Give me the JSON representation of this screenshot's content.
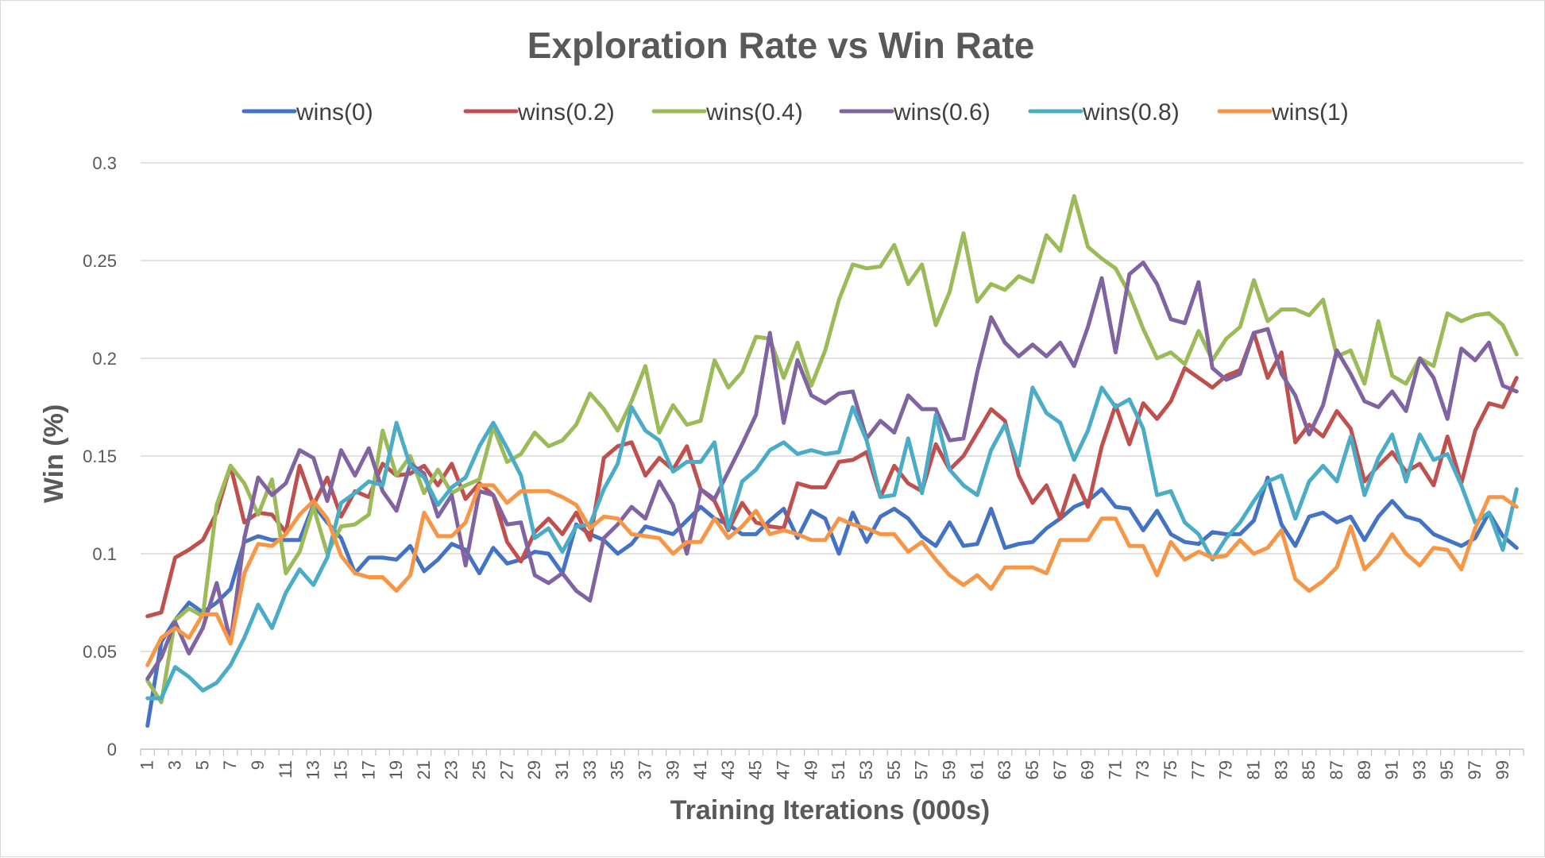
{
  "chart_data": {
    "type": "line",
    "title": "Exploration Rate vs Win Rate",
    "xlabel": "Training Iterations (000s)",
    "ylabel": "Win (%)",
    "ylim": [
      0,
      0.3
    ],
    "yticks": [
      "0",
      "0.05",
      "0.1",
      "0.15",
      "0.2",
      "0.25",
      "0.3"
    ],
    "xlim": [
      1,
      100
    ],
    "grid": "horizontal",
    "legend_position": "top",
    "series": [
      {
        "name": "wins(0)",
        "color": "#4472C4",
        "values": [
          0.012,
          0.055,
          0.066,
          0.075,
          0.07,
          0.075,
          0.082,
          0.106,
          0.109,
          0.107,
          0.107,
          0.107,
          0.125,
          0.116,
          0.108,
          0.09,
          0.098,
          0.098,
          0.097,
          0.104,
          0.091,
          0.097,
          0.105,
          0.102,
          0.09,
          0.103,
          0.095,
          0.097,
          0.101,
          0.1,
          0.09,
          0.115,
          0.11,
          0.107,
          0.1,
          0.105,
          0.114,
          0.112,
          0.11,
          0.117,
          0.124,
          0.118,
          0.115,
          0.11,
          0.11,
          0.117,
          0.123,
          0.108,
          0.122,
          0.118,
          0.1,
          0.121,
          0.106,
          0.119,
          0.123,
          0.118,
          0.109,
          0.104,
          0.116,
          0.104,
          0.105,
          0.123,
          0.103,
          0.105,
          0.106,
          0.113,
          0.118,
          0.124,
          0.127,
          0.133,
          0.124,
          0.123,
          0.112,
          0.122,
          0.11,
          0.106,
          0.105,
          0.111,
          0.11,
          0.11,
          0.117,
          0.139,
          0.115,
          0.104,
          0.119,
          0.121,
          0.116,
          0.119,
          0.107,
          0.119,
          0.127,
          0.119,
          0.117,
          0.11,
          0.107,
          0.104,
          0.108,
          0.121,
          0.109,
          0.103
        ]
      },
      {
        "name": "wins(0.2)",
        "color": "#C0504D",
        "values": [
          0.068,
          0.07,
          0.098,
          0.102,
          0.107,
          0.121,
          0.145,
          0.116,
          0.121,
          0.12,
          0.111,
          0.145,
          0.125,
          0.139,
          0.119,
          0.132,
          0.129,
          0.146,
          0.14,
          0.141,
          0.145,
          0.135,
          0.146,
          0.128,
          0.136,
          0.13,
          0.106,
          0.096,
          0.111,
          0.118,
          0.11,
          0.121,
          0.107,
          0.149,
          0.155,
          0.157,
          0.14,
          0.149,
          0.143,
          0.155,
          0.133,
          0.127,
          0.112,
          0.126,
          0.116,
          0.114,
          0.113,
          0.136,
          0.134,
          0.134,
          0.147,
          0.148,
          0.152,
          0.129,
          0.145,
          0.136,
          0.132,
          0.156,
          0.143,
          0.15,
          0.162,
          0.174,
          0.168,
          0.14,
          0.126,
          0.135,
          0.118,
          0.14,
          0.124,
          0.155,
          0.176,
          0.156,
          0.177,
          0.169,
          0.178,
          0.195,
          0.19,
          0.185,
          0.191,
          0.194,
          0.213,
          0.19,
          0.203,
          0.157,
          0.166,
          0.16,
          0.173,
          0.164,
          0.137,
          0.145,
          0.152,
          0.142,
          0.146,
          0.135,
          0.16,
          0.136,
          0.163,
          0.177,
          0.175,
          0.19
        ]
      },
      {
        "name": "wins(0.4)",
        "color": "#9BBB59",
        "values": [
          0.035,
          0.024,
          0.066,
          0.072,
          0.068,
          0.125,
          0.145,
          0.136,
          0.12,
          0.138,
          0.09,
          0.101,
          0.124,
          0.1,
          0.114,
          0.115,
          0.12,
          0.163,
          0.14,
          0.15,
          0.131,
          0.143,
          0.131,
          0.135,
          0.138,
          0.165,
          0.147,
          0.151,
          0.162,
          0.155,
          0.158,
          0.166,
          0.182,
          0.174,
          0.163,
          0.178,
          0.196,
          0.162,
          0.176,
          0.166,
          0.168,
          0.199,
          0.185,
          0.193,
          0.211,
          0.21,
          0.19,
          0.208,
          0.186,
          0.204,
          0.23,
          0.248,
          0.246,
          0.247,
          0.258,
          0.238,
          0.248,
          0.217,
          0.234,
          0.264,
          0.229,
          0.238,
          0.235,
          0.242,
          0.239,
          0.263,
          0.255,
          0.283,
          0.257,
          0.251,
          0.246,
          0.233,
          0.215,
          0.2,
          0.203,
          0.197,
          0.214,
          0.199,
          0.21,
          0.216,
          0.24,
          0.219,
          0.225,
          0.225,
          0.222,
          0.23,
          0.201,
          0.204,
          0.187,
          0.219,
          0.191,
          0.187,
          0.2,
          0.196,
          0.223,
          0.219,
          0.222,
          0.223,
          0.217,
          0.202
        ]
      },
      {
        "name": "wins(0.6)",
        "color": "#8064A2",
        "values": [
          0.036,
          0.047,
          0.065,
          0.049,
          0.062,
          0.085,
          0.055,
          0.108,
          0.139,
          0.13,
          0.136,
          0.153,
          0.149,
          0.127,
          0.153,
          0.14,
          0.154,
          0.132,
          0.122,
          0.146,
          0.141,
          0.119,
          0.13,
          0.094,
          0.132,
          0.13,
          0.115,
          0.116,
          0.089,
          0.085,
          0.09,
          0.081,
          0.076,
          0.108,
          0.115,
          0.124,
          0.118,
          0.137,
          0.125,
          0.1,
          0.133,
          0.128,
          0.142,
          0.156,
          0.171,
          0.213,
          0.167,
          0.199,
          0.181,
          0.177,
          0.182,
          0.183,
          0.159,
          0.168,
          0.162,
          0.181,
          0.174,
          0.174,
          0.158,
          0.159,
          0.193,
          0.221,
          0.208,
          0.201,
          0.207,
          0.201,
          0.208,
          0.196,
          0.216,
          0.241,
          0.203,
          0.243,
          0.249,
          0.238,
          0.22,
          0.218,
          0.239,
          0.195,
          0.189,
          0.192,
          0.213,
          0.215,
          0.192,
          0.181,
          0.161,
          0.176,
          0.204,
          0.192,
          0.178,
          0.175,
          0.183,
          0.173,
          0.2,
          0.19,
          0.169,
          0.205,
          0.199,
          0.208,
          0.186,
          0.183
        ]
      },
      {
        "name": "wins(0.8)",
        "color": "#4BACC6",
        "values": [
          0.026,
          0.026,
          0.042,
          0.037,
          0.03,
          0.034,
          0.043,
          0.057,
          0.074,
          0.062,
          0.08,
          0.092,
          0.084,
          0.098,
          0.126,
          0.131,
          0.137,
          0.135,
          0.167,
          0.145,
          0.139,
          0.125,
          0.134,
          0.139,
          0.155,
          0.167,
          0.154,
          0.14,
          0.108,
          0.113,
          0.101,
          0.114,
          0.115,
          0.133,
          0.146,
          0.175,
          0.163,
          0.158,
          0.142,
          0.147,
          0.147,
          0.157,
          0.113,
          0.137,
          0.143,
          0.153,
          0.157,
          0.151,
          0.153,
          0.151,
          0.152,
          0.175,
          0.158,
          0.129,
          0.13,
          0.159,
          0.131,
          0.171,
          0.143,
          0.135,
          0.13,
          0.153,
          0.166,
          0.145,
          0.185,
          0.172,
          0.167,
          0.148,
          0.163,
          0.185,
          0.175,
          0.179,
          0.164,
          0.13,
          0.132,
          0.116,
          0.11,
          0.097,
          0.108,
          0.116,
          0.127,
          0.137,
          0.14,
          0.118,
          0.137,
          0.145,
          0.137,
          0.16,
          0.13,
          0.149,
          0.161,
          0.137,
          0.161,
          0.148,
          0.151,
          0.135,
          0.116,
          0.121,
          0.102,
          0.133
        ]
      },
      {
        "name": "wins(1)",
        "color": "#F79646",
        "values": [
          0.043,
          0.057,
          0.062,
          0.057,
          0.069,
          0.069,
          0.054,
          0.09,
          0.105,
          0.104,
          0.11,
          0.12,
          0.127,
          0.118,
          0.099,
          0.09,
          0.088,
          0.088,
          0.081,
          0.089,
          0.121,
          0.109,
          0.109,
          0.116,
          0.135,
          0.135,
          0.126,
          0.132,
          0.132,
          0.132,
          0.129,
          0.125,
          0.113,
          0.119,
          0.118,
          0.11,
          0.109,
          0.108,
          0.1,
          0.106,
          0.106,
          0.118,
          0.108,
          0.114,
          0.122,
          0.11,
          0.112,
          0.11,
          0.107,
          0.107,
          0.118,
          0.115,
          0.113,
          0.11,
          0.11,
          0.101,
          0.106,
          0.097,
          0.089,
          0.084,
          0.089,
          0.082,
          0.093,
          0.093,
          0.093,
          0.09,
          0.107,
          0.107,
          0.107,
          0.118,
          0.118,
          0.104,
          0.104,
          0.089,
          0.106,
          0.097,
          0.101,
          0.098,
          0.099,
          0.107,
          0.1,
          0.103,
          0.112,
          0.087,
          0.081,
          0.086,
          0.093,
          0.114,
          0.092,
          0.099,
          0.11,
          0.1,
          0.094,
          0.103,
          0.102,
          0.092,
          0.113,
          0.129,
          0.129,
          0.124
        ]
      }
    ]
  }
}
